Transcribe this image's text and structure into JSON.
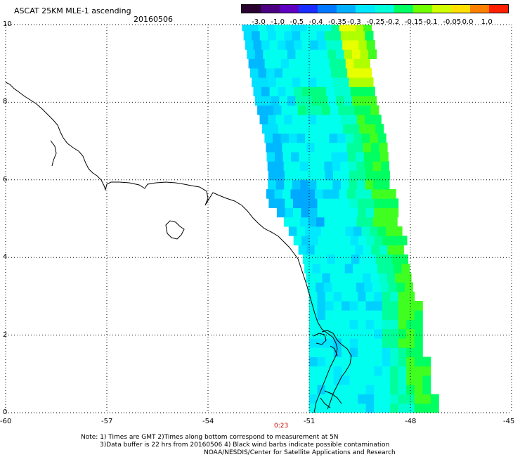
{
  "header": {
    "title": "ASCAT 25KM MLE-1 ascending",
    "date": "20160506"
  },
  "colorbar": {
    "labels": [
      "-3.0",
      "-1.0",
      "-0.5",
      "-0.4",
      "-0.35",
      "-0.3",
      "-0.25",
      "-0.2",
      "-0.15",
      "-0.1",
      "-0.05",
      "0.0",
      "1.0"
    ],
    "colors": [
      "#2a0030",
      "#4a0080",
      "#6000c0",
      "#1a2cff",
      "#0078ff",
      "#00b0ff",
      "#00e8ff",
      "#00ffd8",
      "#00ff60",
      "#70ff00",
      "#d0ff00",
      "#ffe000",
      "#ff8000",
      "#ff2000"
    ]
  },
  "axes": {
    "x_ticks": [
      "-60",
      "-57",
      "-54",
      "-51",
      "-48",
      "-45"
    ],
    "y_ticks": [
      "10",
      "8",
      "6",
      "4",
      "2",
      "0"
    ],
    "x_range": [
      -60,
      -45
    ],
    "y_range": [
      0,
      10
    ]
  },
  "time_marker": "0:23",
  "notes": {
    "line1": "Note: 1) Times are GMT 2)Times along bottom correspond to measurement at 5N",
    "line2": "3)Data buffer is 22 hrs from 20160506 4) Black wind barbs indicate possible contamination",
    "credit": "NOAA/NESDIS/Center for Satellite Applications and Research"
  },
  "swath": {
    "left_edge": [
      [
        -53.0,
        10
      ],
      [
        -52.8,
        9.0
      ],
      [
        -52.6,
        8.0
      ],
      [
        -52.3,
        7.0
      ],
      [
        -52.2,
        6.0
      ],
      [
        -52.3,
        5.5
      ],
      [
        -51.8,
        5.0
      ],
      [
        -51.5,
        4.5
      ],
      [
        -51.2,
        4.0
      ],
      [
        -51.0,
        3.0
      ],
      [
        -51.0,
        2.0
      ],
      [
        -51.0,
        1.0
      ],
      [
        -51.0,
        0
      ]
    ],
    "right_edge": [
      [
        -47.3,
        0
      ],
      [
        -47.5,
        1.0
      ],
      [
        -47.8,
        2.0
      ],
      [
        -47.9,
        3.0
      ],
      [
        -48.2,
        4.0
      ],
      [
        -48.5,
        5.0
      ],
      [
        -48.7,
        6.0
      ],
      [
        -48.9,
        7.0
      ],
      [
        -49.0,
        8.0
      ],
      [
        -49.2,
        9.0
      ],
      [
        -49.3,
        10
      ]
    ]
  }
}
